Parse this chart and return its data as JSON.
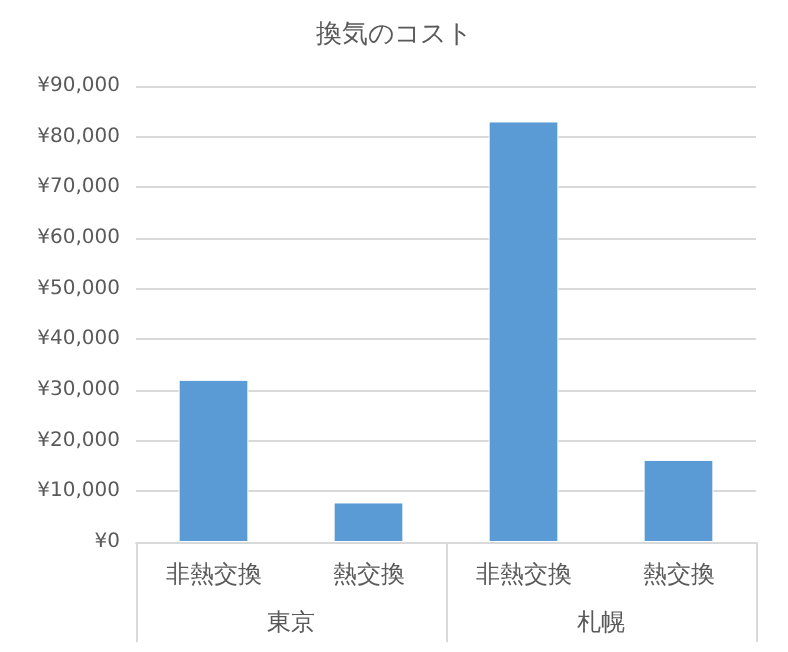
{
  "chart_data": {
    "type": "bar",
    "title": "換気のコスト",
    "categories": [
      "非熱交換",
      "熱交換",
      "非熱交換",
      "熱交換"
    ],
    "annotations": [
      "東京",
      "札幌"
    ],
    "values": [
      32000,
      7800,
      83000,
      16200
    ],
    "color": "#5b9bd5",
    "ylim": [
      0,
      90000
    ],
    "yticks": [
      {
        "value": 0,
        "label": "¥0"
      },
      {
        "value": 10000,
        "label": "¥10,000"
      },
      {
        "value": 20000,
        "label": "¥20,000"
      },
      {
        "value": 30000,
        "label": "¥30,000"
      },
      {
        "value": 40000,
        "label": "¥40,000"
      },
      {
        "value": 50000,
        "label": "¥50,000"
      },
      {
        "value": 60000,
        "label": "¥60,000"
      },
      {
        "value": 70000,
        "label": "¥70,000"
      },
      {
        "value": 80000,
        "label": "¥80,000"
      },
      {
        "value": 90000,
        "label": "¥90,000"
      }
    ],
    "grid": "y"
  }
}
